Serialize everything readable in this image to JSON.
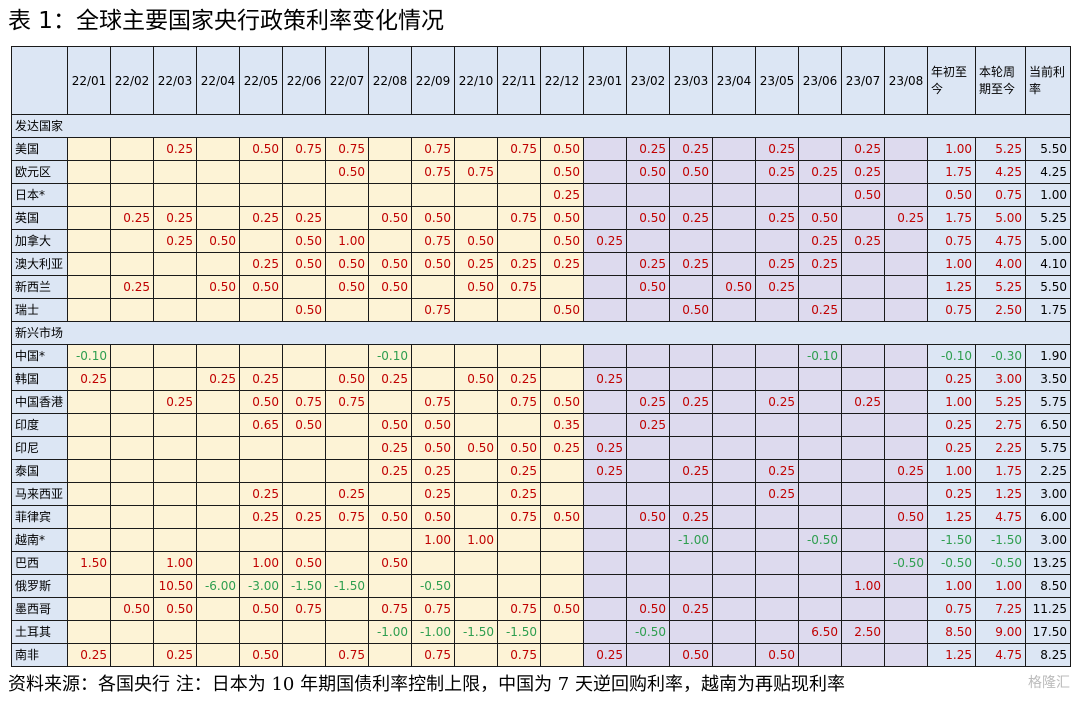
{
  "title": "表 1：全球主要国家央行政策利率变化情况",
  "columns": [
    "22/01",
    "22/02",
    "22/03",
    "22/04",
    "22/05",
    "22/06",
    "22/07",
    "22/08",
    "22/09",
    "22/10",
    "22/11",
    "22/12",
    "23/01",
    "23/02",
    "23/03",
    "23/04",
    "23/05",
    "23/06",
    "23/07",
    "23/08"
  ],
  "summary_columns": [
    "年初至今",
    "本轮周期至今",
    "当前利率"
  ],
  "sections": [
    {
      "name": "发达国家",
      "rows": [
        {
          "country": "美国",
          "cells": [
            "",
            "",
            "0.25",
            "",
            "0.50",
            "0.75",
            "0.75",
            "",
            "0.75",
            "",
            "0.75",
            "0.50",
            "",
            "0.25",
            "0.25",
            "",
            "0.25",
            "",
            "0.25",
            ""
          ],
          "ytd": "1.00",
          "cycle": "5.25",
          "rate": "5.50"
        },
        {
          "country": "欧元区",
          "cells": [
            "",
            "",
            "",
            "",
            "",
            "",
            "0.50",
            "",
            "0.75",
            "0.75",
            "",
            "0.50",
            "",
            "0.50",
            "0.50",
            "",
            "0.25",
            "0.25",
            "0.25",
            ""
          ],
          "ytd": "1.75",
          "cycle": "4.25",
          "rate": "4.25"
        },
        {
          "country": "日本*",
          "cells": [
            "",
            "",
            "",
            "",
            "",
            "",
            "",
            "",
            "",
            "",
            "",
            "0.25",
            "",
            "",
            "",
            "",
            "",
            "",
            "0.50",
            ""
          ],
          "ytd": "0.50",
          "cycle": "0.75",
          "rate": "1.00"
        },
        {
          "country": "英国",
          "cells": [
            "",
            "0.25",
            "0.25",
            "",
            "0.25",
            "0.25",
            "",
            "0.50",
            "0.50",
            "",
            "0.75",
            "0.50",
            "",
            "0.50",
            "0.25",
            "",
            "0.25",
            "0.50",
            "",
            "0.25"
          ],
          "ytd": "1.75",
          "cycle": "5.00",
          "rate": "5.25"
        },
        {
          "country": "加拿大",
          "cells": [
            "",
            "",
            "0.25",
            "0.50",
            "",
            "0.50",
            "1.00",
            "",
            "0.75",
            "0.50",
            "",
            "0.50",
            "0.25",
            "",
            "",
            "",
            "",
            "0.25",
            "0.25",
            ""
          ],
          "ytd": "0.75",
          "cycle": "4.75",
          "rate": "5.00"
        },
        {
          "country": "澳大利亚",
          "cells": [
            "",
            "",
            "",
            "",
            "0.25",
            "0.50",
            "0.50",
            "0.50",
            "0.50",
            "0.25",
            "0.25",
            "0.25",
            "",
            "0.25",
            "0.25",
            "",
            "0.25",
            "0.25",
            "",
            ""
          ],
          "ytd": "1.00",
          "cycle": "4.00",
          "rate": "4.10"
        },
        {
          "country": "新西兰",
          "cells": [
            "",
            "0.25",
            "",
            "0.50",
            "0.50",
            "",
            "0.50",
            "0.50",
            "",
            "0.50",
            "0.75",
            "",
            "",
            "0.50",
            "",
            "0.50",
            "0.25",
            "",
            "",
            ""
          ],
          "ytd": "1.25",
          "cycle": "5.25",
          "rate": "5.50"
        },
        {
          "country": "瑞士",
          "cells": [
            "",
            "",
            "",
            "",
            "",
            "0.50",
            "",
            "",
            "0.75",
            "",
            "",
            "0.50",
            "",
            "",
            "0.50",
            "",
            "",
            "0.25",
            "",
            ""
          ],
          "ytd": "0.75",
          "cycle": "2.50",
          "rate": "1.75"
        }
      ]
    },
    {
      "name": "新兴市场",
      "rows": [
        {
          "country": "中国*",
          "cells": [
            "-0.10",
            "",
            "",
            "",
            "",
            "",
            "",
            "-0.10",
            "",
            "",
            "",
            "",
            "",
            "",
            "",
            "",
            "",
            "-0.10",
            "",
            ""
          ],
          "ytd": "-0.10",
          "cycle": "-0.30",
          "rate": "1.90"
        },
        {
          "country": "韩国",
          "cells": [
            "0.25",
            "",
            "",
            "0.25",
            "0.25",
            "",
            "0.50",
            "0.25",
            "",
            "0.50",
            "0.25",
            "",
            "0.25",
            "",
            "",
            "",
            "",
            "",
            "",
            ""
          ],
          "ytd": "0.25",
          "cycle": "3.00",
          "rate": "3.50"
        },
        {
          "country": "中国香港",
          "cells": [
            "",
            "",
            "0.25",
            "",
            "0.50",
            "0.75",
            "0.75",
            "",
            "0.75",
            "",
            "0.75",
            "0.50",
            "",
            "0.25",
            "0.25",
            "",
            "0.25",
            "",
            "0.25",
            ""
          ],
          "ytd": "1.00",
          "cycle": "5.25",
          "rate": "5.75"
        },
        {
          "country": "印度",
          "cells": [
            "",
            "",
            "",
            "",
            "0.65",
            "0.50",
            "",
            "0.50",
            "0.50",
            "",
            "",
            "0.35",
            "",
            "0.25",
            "",
            "",
            "",
            "",
            "",
            ""
          ],
          "ytd": "0.25",
          "cycle": "2.75",
          "rate": "6.50"
        },
        {
          "country": "印尼",
          "cells": [
            "",
            "",
            "",
            "",
            "",
            "",
            "",
            "0.25",
            "0.50",
            "0.50",
            "0.50",
            "0.25",
            "0.25",
            "",
            "",
            "",
            "",
            "",
            "",
            ""
          ],
          "ytd": "0.25",
          "cycle": "2.25",
          "rate": "5.75"
        },
        {
          "country": "泰国",
          "cells": [
            "",
            "",
            "",
            "",
            "",
            "",
            "",
            "0.25",
            "0.25",
            "",
            "0.25",
            "",
            "0.25",
            "",
            "0.25",
            "",
            "0.25",
            "",
            "",
            "0.25"
          ],
          "ytd": "1.00",
          "cycle": "1.75",
          "rate": "2.25"
        },
        {
          "country": "马来西亚",
          "cells": [
            "",
            "",
            "",
            "",
            "0.25",
            "",
            "0.25",
            "",
            "0.25",
            "",
            "0.25",
            "",
            "",
            "",
            "",
            "",
            "0.25",
            "",
            "",
            ""
          ],
          "ytd": "0.25",
          "cycle": "1.25",
          "rate": "3.00"
        },
        {
          "country": "菲律宾",
          "cells": [
            "",
            "",
            "",
            "",
            "0.25",
            "0.25",
            "0.75",
            "0.50",
            "0.50",
            "",
            "0.75",
            "0.50",
            "",
            "0.50",
            "0.25",
            "",
            "",
            "",
            "",
            "0.50"
          ],
          "ytd": "1.25",
          "cycle": "4.75",
          "rate": "6.00"
        },
        {
          "country": "越南*",
          "cells": [
            "",
            "",
            "",
            "",
            "",
            "",
            "",
            "",
            "1.00",
            "1.00",
            "",
            "",
            "",
            "",
            "-1.00",
            "",
            "",
            "-0.50",
            "",
            ""
          ],
          "ytd": "-1.50",
          "cycle": "-1.50",
          "rate": "3.00"
        },
        {
          "country": "巴西",
          "cells": [
            "1.50",
            "",
            "1.00",
            "",
            "1.00",
            "0.50",
            "",
            "0.50",
            "",
            "",
            "",
            "",
            "",
            "",
            "",
            "",
            "",
            "",
            "",
            "-0.50"
          ],
          "ytd": "-0.50",
          "cycle": "-0.50",
          "rate": "13.25"
        },
        {
          "country": "俄罗斯",
          "cells": [
            "",
            "",
            "10.50",
            "-6.00",
            "-3.00",
            "-1.50",
            "-1.50",
            "",
            "-0.50",
            "",
            "",
            "",
            "",
            "",
            "",
            "",
            "",
            "",
            "1.00",
            ""
          ],
          "ytd": "1.00",
          "cycle": "1.00",
          "rate": "8.50"
        },
        {
          "country": "墨西哥",
          "cells": [
            "",
            "0.50",
            "0.50",
            "",
            "0.50",
            "0.75",
            "",
            "0.75",
            "0.75",
            "",
            "0.75",
            "0.50",
            "",
            "0.50",
            "0.25",
            "",
            "",
            "",
            "",
            ""
          ],
          "ytd": "0.75",
          "cycle": "7.25",
          "rate": "11.25"
        },
        {
          "country": "土耳其",
          "cells": [
            "",
            "",
            "",
            "",
            "",
            "",
            "",
            "-1.00",
            "-1.00",
            "-1.50",
            "-1.50",
            "",
            "",
            "-0.50",
            "",
            "",
            "",
            "6.50",
            "2.50",
            ""
          ],
          "ytd": "8.50",
          "cycle": "9.00",
          "rate": "17.50"
        },
        {
          "country": "南非",
          "cells": [
            "0.25",
            "",
            "0.25",
            "",
            "0.50",
            "",
            "0.75",
            "",
            "0.75",
            "",
            "0.75",
            "",
            "0.25",
            "",
            "0.50",
            "",
            "0.50",
            "",
            "",
            ""
          ],
          "ytd": "1.25",
          "cycle": "4.75",
          "rate": "8.25"
        }
      ]
    }
  ],
  "footer": "资料来源：各国央行    注：日本为 10 年期国债利率控制上限，中国为 7 天逆回购利率，越南为再贴现利率",
  "watermark": "格隆汇",
  "colors": {
    "header_bg": "#dce6f4",
    "y2022_bg": "#fdf3d6",
    "y2023_bg": "#dddaee",
    "positive": "#c00000",
    "negative": "#2e9e4f"
  }
}
